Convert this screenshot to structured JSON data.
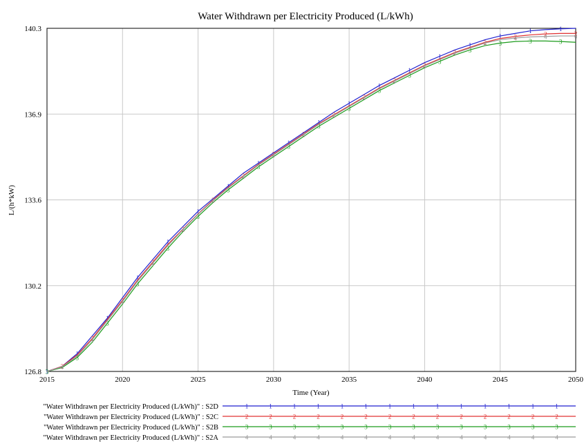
{
  "chart_data": {
    "type": "line",
    "title": "Water Withdrawn per Electricity Produced (L/kWh)",
    "xlabel": "Time (Year)",
    "ylabel": "L/(h*kW)",
    "xlim": [
      2015,
      2050
    ],
    "ylim": [
      126.8,
      140.3
    ],
    "x_ticks": [
      "2015",
      "2020",
      "2025",
      "2030",
      "2035",
      "2040",
      "2045",
      "2050"
    ],
    "y_ticks": [
      "140.3",
      "136.9",
      "133.6",
      "130.2",
      "126.8"
    ],
    "grid": true,
    "legend_position": "bottom",
    "x": [
      2015,
      2016,
      2017,
      2018,
      2019,
      2020,
      2021,
      2022,
      2023,
      2024,
      2025,
      2026,
      2027,
      2028,
      2029,
      2030,
      2031,
      2032,
      2033,
      2034,
      2035,
      2036,
      2037,
      2038,
      2039,
      2040,
      2041,
      2042,
      2043,
      2044,
      2045,
      2046,
      2047,
      2048,
      2049,
      2050
    ],
    "series": [
      {
        "name": "\"Water Withdrawn per Electricity Produced (L/kWh)\" : S2D",
        "marker": "1",
        "color": "#1f1fcf",
        "values": [
          126.8,
          127.0,
          127.5,
          128.2,
          128.9,
          129.7,
          130.5,
          131.2,
          131.9,
          132.5,
          133.1,
          133.6,
          134.1,
          134.6,
          135.0,
          135.4,
          135.8,
          136.2,
          136.6,
          137.0,
          137.35,
          137.7,
          138.05,
          138.35,
          138.65,
          138.95,
          139.2,
          139.45,
          139.65,
          139.85,
          140.0,
          140.1,
          140.2,
          140.25,
          140.28,
          140.3
        ]
      },
      {
        "name": "\"Water Withdrawn per Electricity Produced (L/kWh)\" : S2C",
        "marker": "2",
        "color": "#e03030",
        "values": [
          126.8,
          127.0,
          127.45,
          128.1,
          128.85,
          129.6,
          130.4,
          131.1,
          131.8,
          132.4,
          133.0,
          133.55,
          134.05,
          134.5,
          134.95,
          135.35,
          135.75,
          136.15,
          136.55,
          136.9,
          137.25,
          137.6,
          137.95,
          138.25,
          138.55,
          138.85,
          139.1,
          139.35,
          139.55,
          139.75,
          139.9,
          139.98,
          140.04,
          140.08,
          140.1,
          140.1
        ]
      },
      {
        "name": "\"Water Withdrawn per Electricity Produced (L/kWh)\" : S2B",
        "marker": "3",
        "color": "#1a9a1a",
        "values": [
          126.8,
          126.95,
          127.35,
          127.95,
          128.7,
          129.45,
          130.25,
          130.95,
          131.65,
          132.3,
          132.9,
          133.45,
          133.95,
          134.4,
          134.85,
          135.25,
          135.65,
          136.05,
          136.45,
          136.8,
          137.15,
          137.5,
          137.85,
          138.15,
          138.45,
          138.75,
          139.0,
          139.25,
          139.45,
          139.62,
          139.72,
          139.78,
          139.8,
          139.8,
          139.78,
          139.75
        ]
      },
      {
        "name": "\"Water Withdrawn per Electricity Produced (L/kWh)\" : S2A",
        "marker": "4",
        "color": "#9a9a9a",
        "values": [
          126.8,
          126.98,
          127.4,
          128.05,
          128.8,
          129.55,
          130.35,
          131.05,
          131.75,
          132.38,
          132.98,
          133.52,
          134.02,
          134.47,
          134.92,
          135.32,
          135.72,
          136.12,
          136.52,
          136.87,
          137.22,
          137.57,
          137.92,
          138.22,
          138.52,
          138.82,
          139.07,
          139.32,
          139.52,
          139.72,
          139.85,
          139.92,
          139.96,
          139.98,
          140.0,
          140.0
        ]
      }
    ]
  }
}
